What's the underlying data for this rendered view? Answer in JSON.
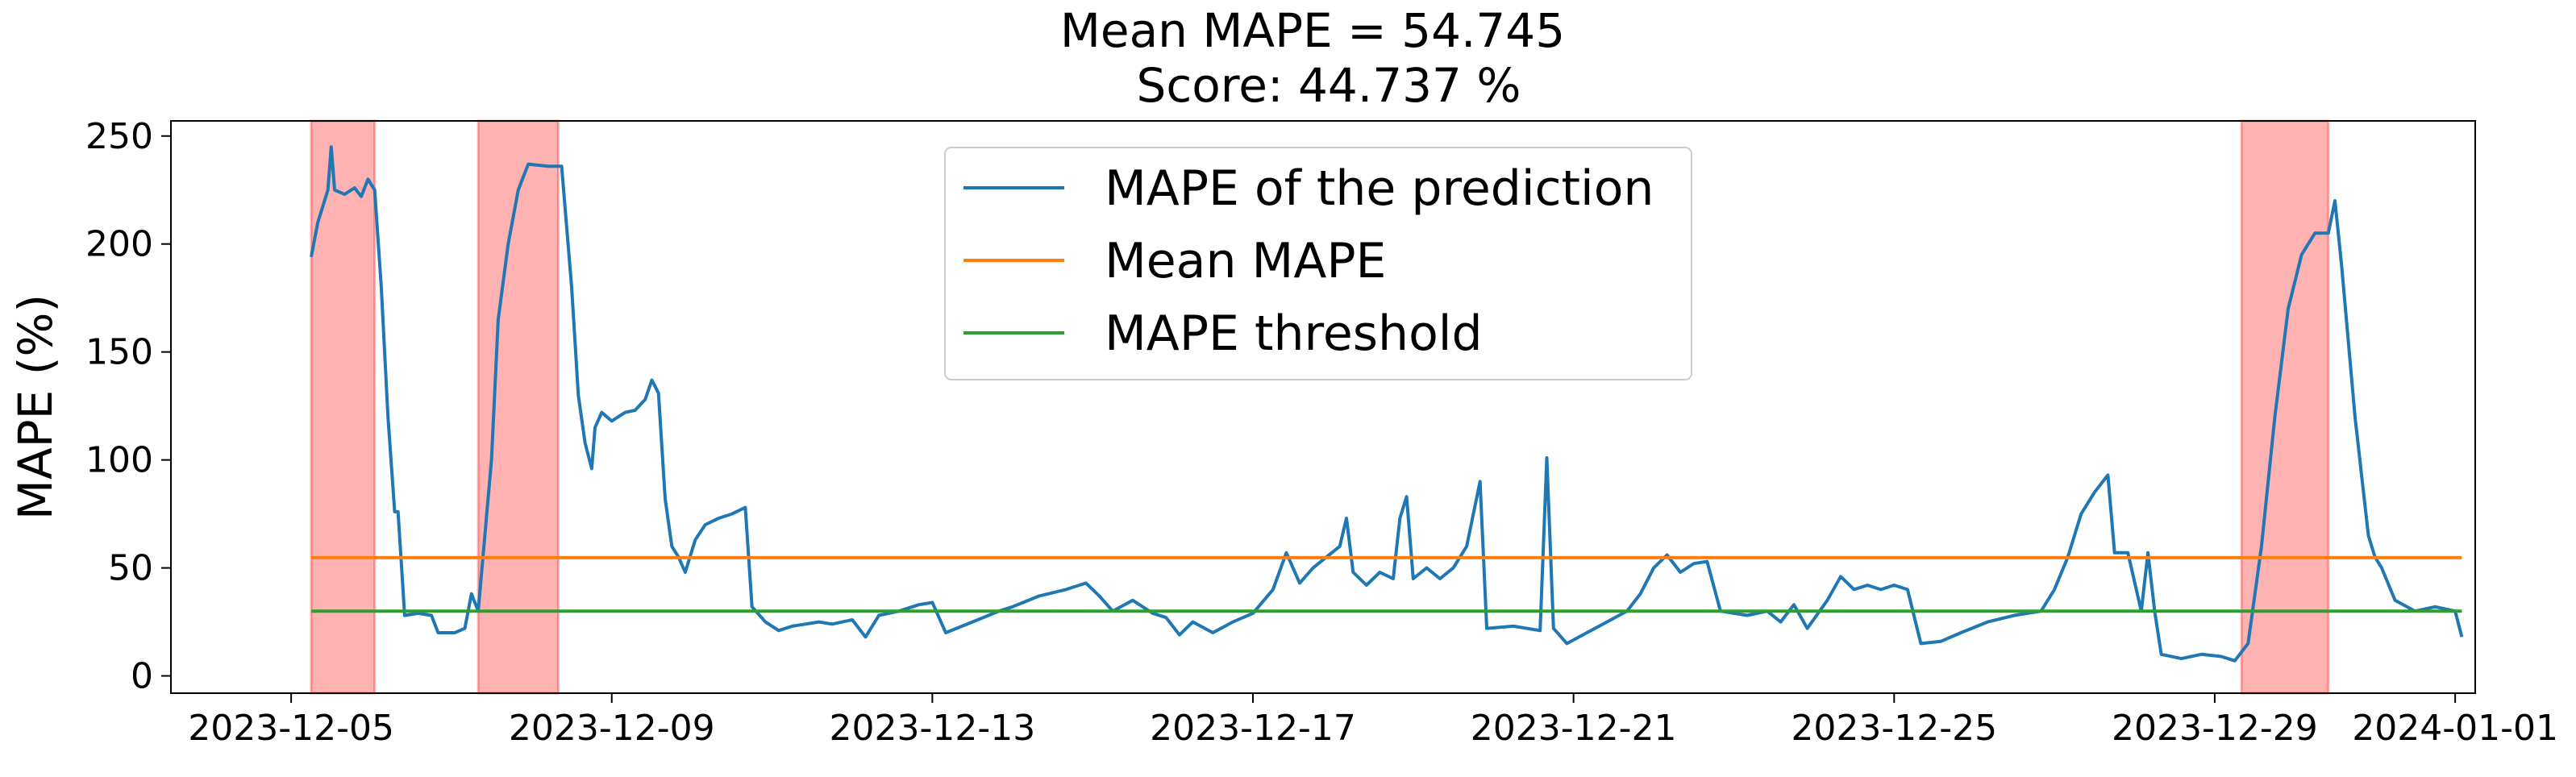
{
  "chart_data": {
    "type": "line",
    "title": "Mean MAPE = 54.745",
    "subtitle": "Score: 44.737 %",
    "xlabel": "",
    "ylabel": "MAPE (%)",
    "xlim": [
      "2023-12-03 12:00",
      "2024-01-01 06:00"
    ],
    "ylim": [
      -8,
      257
    ],
    "xticks": [
      "2023-12-05",
      "2023-12-09",
      "2023-12-13",
      "2023-12-17",
      "2023-12-21",
      "2023-12-25",
      "2023-12-29",
      "2024-01-01"
    ],
    "yticks": [
      0,
      50,
      100,
      150,
      200,
      250
    ],
    "grid": false,
    "legend_placement": "upper center",
    "series": [
      {
        "name": "MAPE of the prediction",
        "color": "#1f77b4",
        "points": [
          [
            "2023-12-05 06:00",
            194
          ],
          [
            "2023-12-05 08:00",
            210
          ],
          [
            "2023-12-05 11:00",
            225
          ],
          [
            "2023-12-05 12:00",
            245
          ],
          [
            "2023-12-05 13:00",
            225
          ],
          [
            "2023-12-05 16:00",
            223
          ],
          [
            "2023-12-05 19:00",
            226
          ],
          [
            "2023-12-05 21:00",
            222
          ],
          [
            "2023-12-05 23:00",
            230
          ],
          [
            "2023-12-06 01:00",
            225
          ],
          [
            "2023-12-06 03:00",
            180
          ],
          [
            "2023-12-06 05:00",
            120
          ],
          [
            "2023-12-06 07:00",
            76
          ],
          [
            "2023-12-06 08:00",
            76
          ],
          [
            "2023-12-06 10:00",
            28
          ],
          [
            "2023-12-06 14:00",
            29
          ],
          [
            "2023-12-06 18:00",
            28
          ],
          [
            "2023-12-06 20:00",
            20
          ],
          [
            "2023-12-07 01:00",
            20
          ],
          [
            "2023-12-07 04:00",
            22
          ],
          [
            "2023-12-07 06:00",
            38
          ],
          [
            "2023-12-07 08:00",
            30
          ],
          [
            "2023-12-07 12:00",
            100
          ],
          [
            "2023-12-07 14:00",
            165
          ],
          [
            "2023-12-07 17:00",
            200
          ],
          [
            "2023-12-07 20:00",
            225
          ],
          [
            "2023-12-07 23:00",
            237
          ],
          [
            "2023-12-08 05:00",
            236
          ],
          [
            "2023-12-08 09:00",
            236
          ],
          [
            "2023-12-08 12:00",
            180
          ],
          [
            "2023-12-08 14:00",
            130
          ],
          [
            "2023-12-08 16:00",
            108
          ],
          [
            "2023-12-08 18:00",
            96
          ],
          [
            "2023-12-08 19:00",
            115
          ],
          [
            "2023-12-08 21:00",
            122
          ],
          [
            "2023-12-09 00:00",
            118
          ],
          [
            "2023-12-09 04:00",
            122
          ],
          [
            "2023-12-09 07:00",
            123
          ],
          [
            "2023-12-09 10:00",
            128
          ],
          [
            "2023-12-09 12:00",
            137
          ],
          [
            "2023-12-09 14:00",
            131
          ],
          [
            "2023-12-09 16:00",
            82
          ],
          [
            "2023-12-09 18:00",
            60
          ],
          [
            "2023-12-09 20:00",
            55
          ],
          [
            "2023-12-09 22:00",
            48
          ],
          [
            "2023-12-10 01:00",
            63
          ],
          [
            "2023-12-10 04:00",
            70
          ],
          [
            "2023-12-10 08:00",
            73
          ],
          [
            "2023-12-10 12:00",
            75
          ],
          [
            "2023-12-10 16:00",
            78
          ],
          [
            "2023-12-10 18:00",
            32
          ],
          [
            "2023-12-10 22:00",
            25
          ],
          [
            "2023-12-11 02:00",
            21
          ],
          [
            "2023-12-11 06:00",
            23
          ],
          [
            "2023-12-11 10:00",
            24
          ],
          [
            "2023-12-11 14:00",
            25
          ],
          [
            "2023-12-11 18:00",
            24
          ],
          [
            "2023-12-12 00:00",
            26
          ],
          [
            "2023-12-12 04:00",
            18
          ],
          [
            "2023-12-12 08:00",
            28
          ],
          [
            "2023-12-12 14:00",
            30
          ],
          [
            "2023-12-12 20:00",
            33
          ],
          [
            "2023-12-13 00:00",
            34
          ],
          [
            "2023-12-13 04:00",
            20
          ],
          [
            "2023-12-13 12:00",
            25
          ],
          [
            "2023-12-13 20:00",
            30
          ],
          [
            "2023-12-14 00:00",
            32
          ],
          [
            "2023-12-14 08:00",
            37
          ],
          [
            "2023-12-14 16:00",
            40
          ],
          [
            "2023-12-14 22:00",
            43
          ],
          [
            "2023-12-15 02:00",
            37
          ],
          [
            "2023-12-15 06:00",
            30
          ],
          [
            "2023-12-15 12:00",
            35
          ],
          [
            "2023-12-15 18:00",
            29
          ],
          [
            "2023-12-15 22:00",
            27
          ],
          [
            "2023-12-16 02:00",
            19
          ],
          [
            "2023-12-16 06:00",
            25
          ],
          [
            "2023-12-16 12:00",
            20
          ],
          [
            "2023-12-16 18:00",
            25
          ],
          [
            "2023-12-17 00:00",
            29
          ],
          [
            "2023-12-17 06:00",
            40
          ],
          [
            "2023-12-17 10:00",
            57
          ],
          [
            "2023-12-17 14:00",
            43
          ],
          [
            "2023-12-17 18:00",
            50
          ],
          [
            "2023-12-17 22:00",
            55
          ],
          [
            "2023-12-18 02:00",
            60
          ],
          [
            "2023-12-18 04:00",
            73
          ],
          [
            "2023-12-18 06:00",
            48
          ],
          [
            "2023-12-18 10:00",
            42
          ],
          [
            "2023-12-18 14:00",
            48
          ],
          [
            "2023-12-18 18:00",
            45
          ],
          [
            "2023-12-18 20:00",
            73
          ],
          [
            "2023-12-18 22:00",
            83
          ],
          [
            "2023-12-19 00:00",
            45
          ],
          [
            "2023-12-19 04:00",
            50
          ],
          [
            "2023-12-19 08:00",
            45
          ],
          [
            "2023-12-19 12:00",
            50
          ],
          [
            "2023-12-19 16:00",
            60
          ],
          [
            "2023-12-19 18:00",
            75
          ],
          [
            "2023-12-19 20:00",
            90
          ],
          [
            "2023-12-19 22:00",
            22
          ],
          [
            "2023-12-20 06:00",
            23
          ],
          [
            "2023-12-20 14:00",
            21
          ],
          [
            "2023-12-20 16:00",
            101
          ],
          [
            "2023-12-20 18:00",
            22
          ],
          [
            "2023-12-20 22:00",
            15
          ],
          [
            "2023-12-21 04:00",
            20
          ],
          [
            "2023-12-21 10:00",
            25
          ],
          [
            "2023-12-21 16:00",
            30
          ],
          [
            "2023-12-21 20:00",
            38
          ],
          [
            "2023-12-22 00:00",
            50
          ],
          [
            "2023-12-22 04:00",
            56
          ],
          [
            "2023-12-22 08:00",
            48
          ],
          [
            "2023-12-22 12:00",
            52
          ],
          [
            "2023-12-22 16:00",
            53
          ],
          [
            "2023-12-22 20:00",
            30
          ],
          [
            "2023-12-23 04:00",
            28
          ],
          [
            "2023-12-23 10:00",
            30
          ],
          [
            "2023-12-23 14:00",
            25
          ],
          [
            "2023-12-23 18:00",
            33
          ],
          [
            "2023-12-23 22:00",
            22
          ],
          [
            "2023-12-24 04:00",
            35
          ],
          [
            "2023-12-24 08:00",
            46
          ],
          [
            "2023-12-24 12:00",
            40
          ],
          [
            "2023-12-24 16:00",
            42
          ],
          [
            "2023-12-24 20:00",
            40
          ],
          [
            "2023-12-25 00:00",
            42
          ],
          [
            "2023-12-25 04:00",
            40
          ],
          [
            "2023-12-25 08:00",
            15
          ],
          [
            "2023-12-25 14:00",
            16
          ],
          [
            "2023-12-25 20:00",
            20
          ],
          [
            "2023-12-26 04:00",
            25
          ],
          [
            "2023-12-26 12:00",
            28
          ],
          [
            "2023-12-26 20:00",
            30
          ],
          [
            "2023-12-27 00:00",
            40
          ],
          [
            "2023-12-27 04:00",
            55
          ],
          [
            "2023-12-27 08:00",
            75
          ],
          [
            "2023-12-27 12:00",
            85
          ],
          [
            "2023-12-27 16:00",
            93
          ],
          [
            "2023-12-27 18:00",
            57
          ],
          [
            "2023-12-27 22:00",
            57
          ],
          [
            "2023-12-28 02:00",
            30
          ],
          [
            "2023-12-28 04:00",
            57
          ],
          [
            "2023-12-28 06:00",
            30
          ],
          [
            "2023-12-28 08:00",
            10
          ],
          [
            "2023-12-28 14:00",
            8
          ],
          [
            "2023-12-28 20:00",
            10
          ],
          [
            "2023-12-29 02:00",
            9
          ],
          [
            "2023-12-29 06:00",
            7
          ],
          [
            "2023-12-29 10:00",
            15
          ],
          [
            "2023-12-29 14:00",
            60
          ],
          [
            "2023-12-29 18:00",
            120
          ],
          [
            "2023-12-29 22:00",
            170
          ],
          [
            "2023-12-30 02:00",
            195
          ],
          [
            "2023-12-30 06:00",
            205
          ],
          [
            "2023-12-30 10:00",
            205
          ],
          [
            "2023-12-30 12:00",
            220
          ],
          [
            "2023-12-30 14:00",
            190
          ],
          [
            "2023-12-30 18:00",
            120
          ],
          [
            "2023-12-30 22:00",
            65
          ],
          [
            "2023-12-31 00:00",
            55
          ],
          [
            "2023-12-31 02:00",
            50
          ],
          [
            "2023-12-31 06:00",
            35
          ],
          [
            "2023-12-31 12:00",
            30
          ],
          [
            "2023-12-31 18:00",
            32
          ],
          [
            "2024-01-01 00:00",
            30
          ],
          [
            "2024-01-01 02:00",
            18
          ]
        ]
      },
      {
        "name": "Mean MAPE",
        "color": "#ff7f0e",
        "points": [
          [
            "2023-12-05 06:00",
            54.745
          ],
          [
            "2024-01-01 02:00",
            54.745
          ]
        ]
      },
      {
        "name": "MAPE threshold",
        "color": "#2ca02c",
        "points": [
          [
            "2023-12-05 06:00",
            30
          ],
          [
            "2024-01-01 02:00",
            30
          ]
        ]
      }
    ],
    "shaded_regions": {
      "color": "#ff0000",
      "ranges": [
        [
          "2023-12-05 06:00",
          "2023-12-06 01:00"
        ],
        [
          "2023-12-07 08:00",
          "2023-12-08 08:00"
        ],
        [
          "2023-12-29 08:00",
          "2023-12-30 10:00"
        ]
      ]
    }
  }
}
